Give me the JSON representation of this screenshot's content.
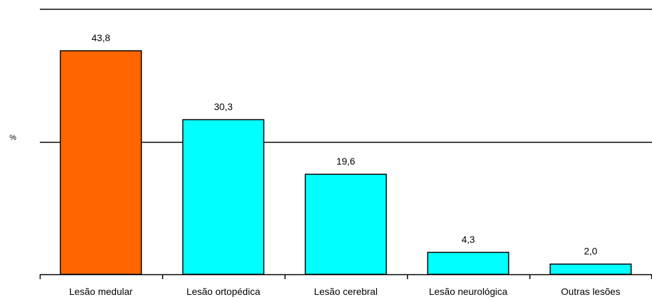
{
  "chart_data": {
    "type": "bar",
    "categories": [
      "Lesão medular",
      "Lesão ortopédica",
      "Lesão cerebral",
      "Lesão neurológica",
      "Outras lesões"
    ],
    "values": [
      43.8,
      30.3,
      19.6,
      4.3,
      2.0
    ],
    "value_labels": [
      "43,8",
      "30,3",
      "19,6",
      "4,3",
      "2,0"
    ],
    "ylabel": "%",
    "ylim": [
      0,
      52
    ],
    "gridlines": [
      26,
      52
    ],
    "grid": true,
    "legend": "none",
    "colors": {
      "highlight": "#FF6600",
      "default": "#00FFFF",
      "outline": "#000000"
    }
  }
}
